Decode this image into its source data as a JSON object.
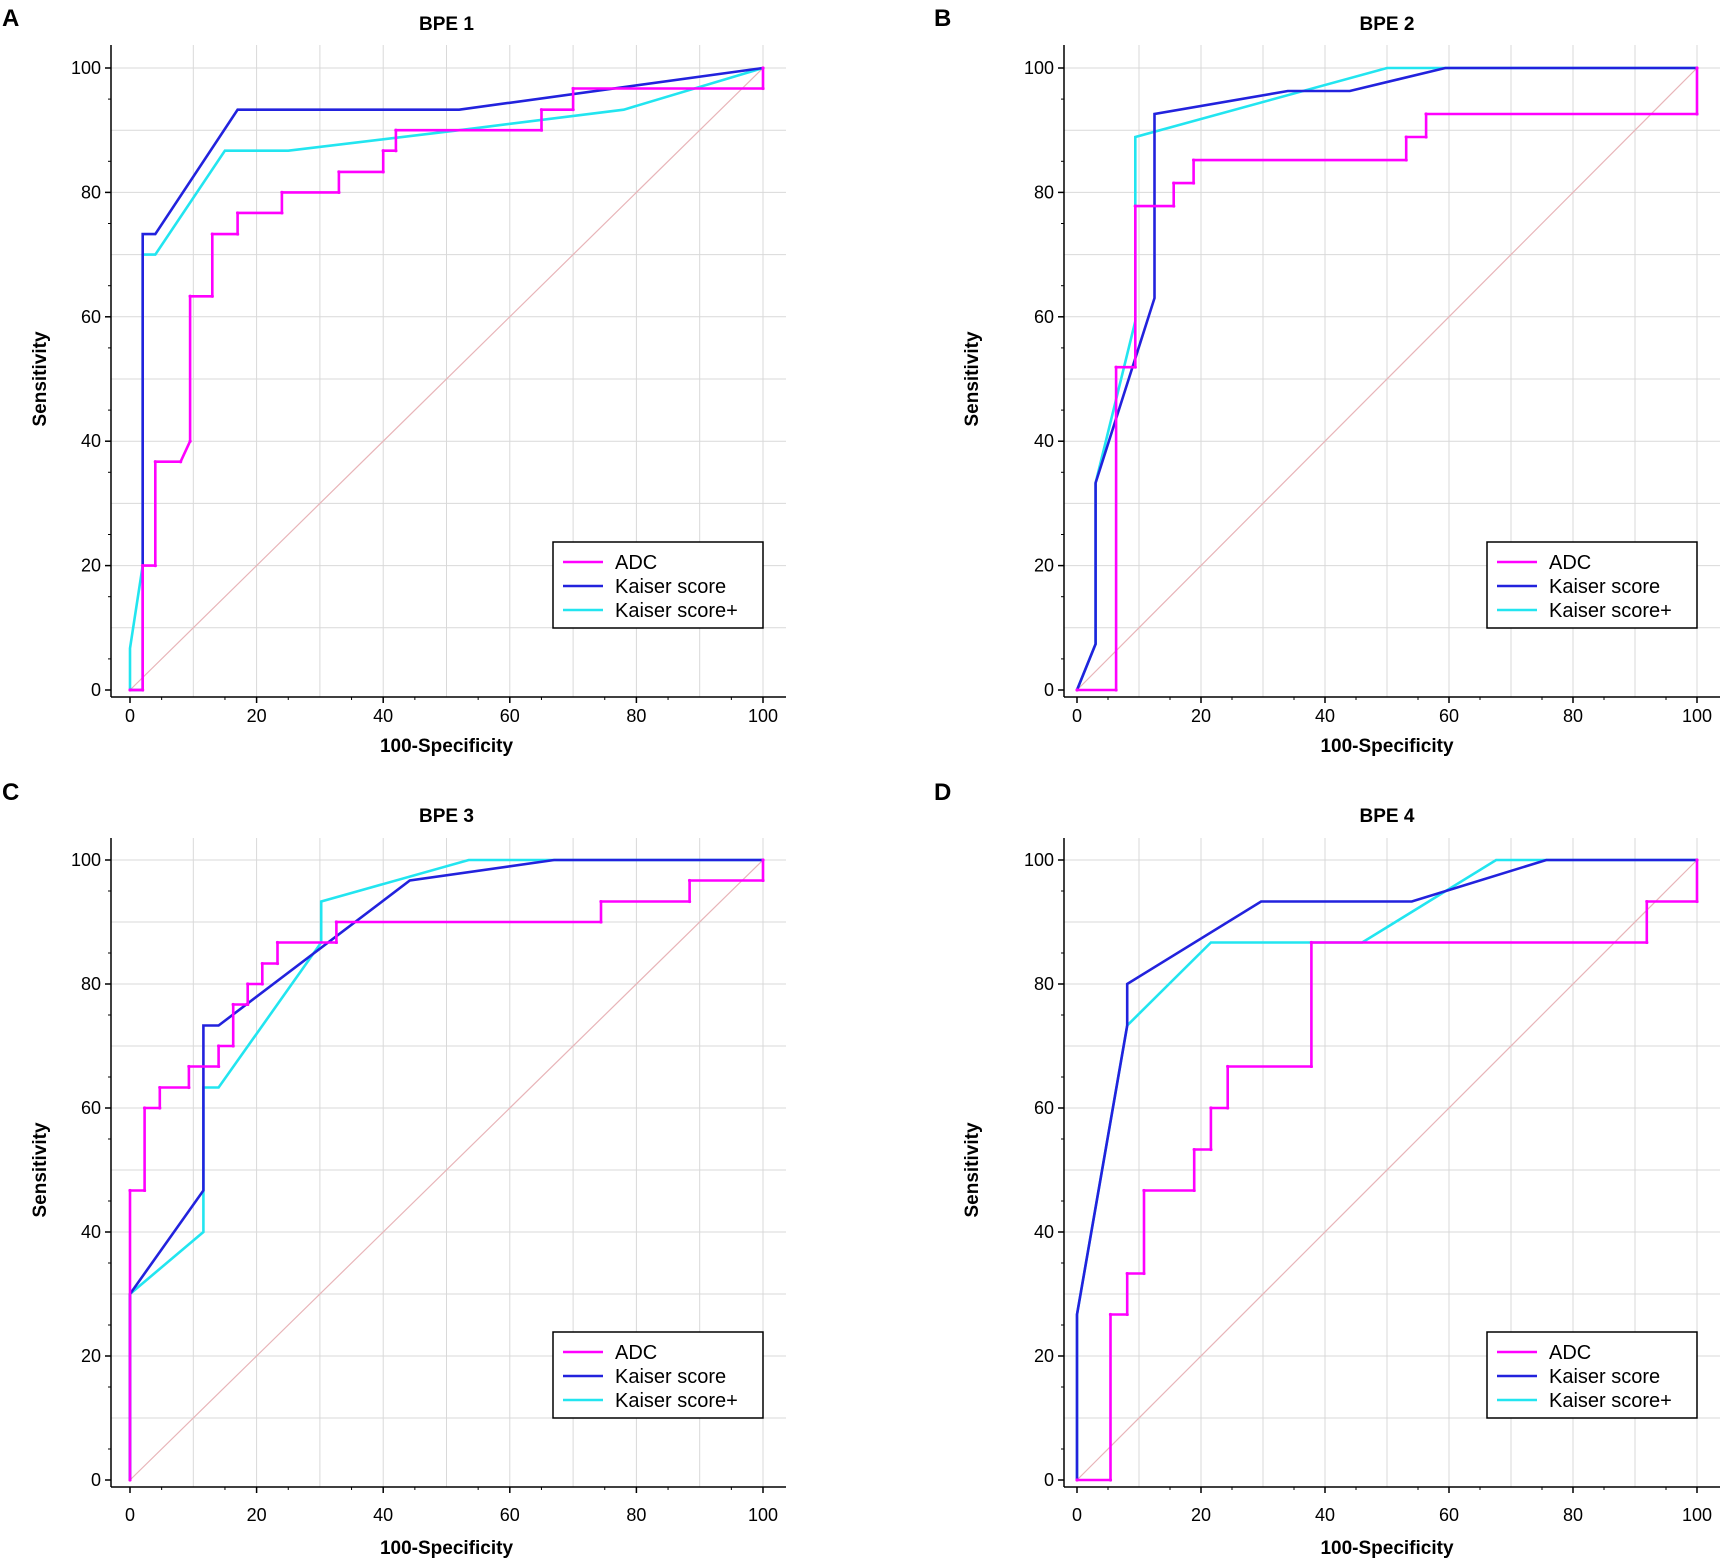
{
  "chart_data": [
    {
      "type": "line",
      "panel_letter": "A",
      "title": "BPE 1",
      "xlabel": "100-Specificity",
      "ylabel": "Sensitivity",
      "xlim": [
        0,
        100
      ],
      "ylim": [
        0,
        100
      ],
      "xticks": [
        "0",
        "20",
        "40",
        "60",
        "80",
        "100"
      ],
      "yticks": [
        "0",
        "20",
        "40",
        "60",
        "80",
        "100"
      ],
      "grid": true,
      "legend_position": "bottom-right",
      "diagonal": {
        "color": "#e8b4b8",
        "points": [
          [
            0,
            0
          ],
          [
            100,
            100
          ]
        ]
      },
      "series": [
        {
          "name": "ADC",
          "color": "#ff00ff",
          "step": true,
          "points": [
            [
              0,
              0
            ],
            [
              2,
              0
            ],
            [
              2,
              20
            ],
            [
              4,
              20
            ],
            [
              4,
              36.7
            ],
            [
              8,
              36.7
            ],
            [
              9.5,
              40
            ],
            [
              9.5,
              63.3
            ],
            [
              13,
              63.3
            ],
            [
              13,
              73.3
            ],
            [
              17,
              73.3
            ],
            [
              17,
              76.7
            ],
            [
              24,
              76.7
            ],
            [
              24,
              80
            ],
            [
              33,
              80
            ],
            [
              33,
              83.3
            ],
            [
              40,
              83.3
            ],
            [
              40,
              86.7
            ],
            [
              42,
              86.7
            ],
            [
              42,
              90
            ],
            [
              65,
              90
            ],
            [
              65,
              93.3
            ],
            [
              70,
              93.3
            ],
            [
              70,
              96.7
            ],
            [
              100,
              96.7
            ],
            [
              100,
              100
            ]
          ]
        },
        {
          "name": "Kaiser score",
          "color": "#2222dd",
          "points": [
            [
              0,
              0
            ],
            [
              2,
              0
            ],
            [
              2,
              73.3
            ],
            [
              4,
              73.3
            ],
            [
              17,
              93.3
            ],
            [
              52,
              93.3
            ],
            [
              100,
              100
            ]
          ]
        },
        {
          "name": "Kaiser score+",
          "color": "#22e5f0",
          "points": [
            [
              0,
              0
            ],
            [
              0,
              6.7
            ],
            [
              2,
              20
            ],
            [
              2,
              70
            ],
            [
              4,
              70
            ],
            [
              15,
              86.7
            ],
            [
              25,
              86.7
            ],
            [
              52,
              90
            ],
            [
              78,
              93.3
            ],
            [
              100,
              100
            ]
          ]
        }
      ]
    },
    {
      "type": "line",
      "panel_letter": "B",
      "title": "BPE 2",
      "xlabel": "100-Specificity",
      "ylabel": "Sensitivity",
      "xlim": [
        0,
        100
      ],
      "ylim": [
        0,
        100
      ],
      "xticks": [
        "0",
        "20",
        "40",
        "60",
        "80",
        "100"
      ],
      "yticks": [
        "0",
        "20",
        "40",
        "60",
        "80",
        "100"
      ],
      "grid": true,
      "legend_position": "bottom-right",
      "diagonal": {
        "color": "#e8b4b8",
        "points": [
          [
            0,
            0
          ],
          [
            100,
            100
          ]
        ]
      },
      "series": [
        {
          "name": "ADC",
          "color": "#ff00ff",
          "step": true,
          "points": [
            [
              0,
              0
            ],
            [
              6.3,
              0
            ],
            [
              6.3,
              51.9
            ],
            [
              9.4,
              51.9
            ],
            [
              9.4,
              77.8
            ],
            [
              15.6,
              77.8
            ],
            [
              15.6,
              81.5
            ],
            [
              18.8,
              81.5
            ],
            [
              18.8,
              85.2
            ],
            [
              53.1,
              85.2
            ],
            [
              53.1,
              88.9
            ],
            [
              56.3,
              88.9
            ],
            [
              56.3,
              92.6
            ],
            [
              100,
              92.6
            ],
            [
              100,
              100
            ]
          ]
        },
        {
          "name": "Kaiser score",
          "color": "#2222dd",
          "points": [
            [
              0,
              0
            ],
            [
              3,
              7.4
            ],
            [
              3,
              33.3
            ],
            [
              12.5,
              63
            ],
            [
              12.5,
              92.6
            ],
            [
              34,
              96.3
            ],
            [
              44,
              96.3
            ],
            [
              59.4,
              100
            ],
            [
              100,
              100
            ]
          ]
        },
        {
          "name": "Kaiser score+",
          "color": "#22e5f0",
          "points": [
            [
              0,
              0
            ],
            [
              3,
              7.4
            ],
            [
              3,
              33.3
            ],
            [
              9.4,
              59.3
            ],
            [
              9.4,
              88.9
            ],
            [
              50,
              100
            ],
            [
              100,
              100
            ]
          ]
        }
      ]
    },
    {
      "type": "line",
      "panel_letter": "C",
      "title": "BPE 3",
      "xlabel": "100-Specificity",
      "ylabel": "Sensitivity",
      "xlim": [
        0,
        100
      ],
      "ylim": [
        0,
        100
      ],
      "xticks": [
        "0",
        "20",
        "40",
        "60",
        "80",
        "100"
      ],
      "yticks": [
        "0",
        "20",
        "40",
        "60",
        "80",
        "100"
      ],
      "grid": true,
      "legend_position": "bottom-right",
      "diagonal": {
        "color": "#e8b4b8",
        "points": [
          [
            0,
            0
          ],
          [
            100,
            100
          ]
        ]
      },
      "series": [
        {
          "name": "ADC",
          "color": "#ff00ff",
          "step": true,
          "points": [
            [
              0,
              0
            ],
            [
              0,
              46.7
            ],
            [
              2.3,
              46.7
            ],
            [
              2.3,
              60
            ],
            [
              4.7,
              60
            ],
            [
              4.7,
              63.3
            ],
            [
              9.3,
              63.3
            ],
            [
              9.3,
              66.7
            ],
            [
              14,
              66.7
            ],
            [
              14,
              70
            ],
            [
              16.3,
              70
            ],
            [
              16.3,
              76.7
            ],
            [
              18.6,
              76.7
            ],
            [
              18.6,
              80
            ],
            [
              20.9,
              80
            ],
            [
              20.9,
              83.3
            ],
            [
              23.3,
              83.3
            ],
            [
              23.3,
              86.7
            ],
            [
              32.6,
              86.7
            ],
            [
              32.6,
              90
            ],
            [
              74.4,
              90
            ],
            [
              74.4,
              93.3
            ],
            [
              88.4,
              93.3
            ],
            [
              88.4,
              96.7
            ],
            [
              100,
              96.7
            ],
            [
              100,
              100
            ]
          ]
        },
        {
          "name": "Kaiser score",
          "color": "#2222dd",
          "points": [
            [
              0,
              0
            ],
            [
              0,
              30
            ],
            [
              11.6,
              46.7
            ],
            [
              11.6,
              73.3
            ],
            [
              14,
              73.3
            ],
            [
              44.2,
              96.7
            ],
            [
              67,
              100
            ],
            [
              100,
              100
            ]
          ]
        },
        {
          "name": "Kaiser score+",
          "color": "#22e5f0",
          "points": [
            [
              0,
              0
            ],
            [
              0,
              30
            ],
            [
              11.6,
              40
            ],
            [
              11.6,
              63.3
            ],
            [
              14,
              63.3
            ],
            [
              30.2,
              86.7
            ],
            [
              30.2,
              93.3
            ],
            [
              53.5,
              100
            ],
            [
              100,
              100
            ]
          ]
        }
      ]
    },
    {
      "type": "line",
      "panel_letter": "D",
      "title": "BPE 4",
      "xlabel": "100-Specificity",
      "ylabel": "Sensitivity",
      "xlim": [
        0,
        100
      ],
      "ylim": [
        0,
        100
      ],
      "xticks": [
        "0",
        "20",
        "40",
        "60",
        "80",
        "100"
      ],
      "yticks": [
        "0",
        "20",
        "40",
        "60",
        "80",
        "100"
      ],
      "grid": true,
      "legend_position": "bottom-right",
      "diagonal": {
        "color": "#e8b4b8",
        "points": [
          [
            0,
            0
          ],
          [
            100,
            100
          ]
        ]
      },
      "series": [
        {
          "name": "ADC",
          "color": "#ff00ff",
          "step": true,
          "points": [
            [
              0,
              0
            ],
            [
              5.4,
              0
            ],
            [
              5.4,
              26.7
            ],
            [
              8.1,
              26.7
            ],
            [
              8.1,
              33.3
            ],
            [
              10.8,
              33.3
            ],
            [
              10.8,
              46.7
            ],
            [
              18.9,
              46.7
            ],
            [
              18.9,
              53.3
            ],
            [
              21.6,
              53.3
            ],
            [
              21.6,
              60
            ],
            [
              24.3,
              60
            ],
            [
              24.3,
              66.7
            ],
            [
              37.8,
              66.7
            ],
            [
              37.8,
              86.7
            ],
            [
              91.9,
              86.7
            ],
            [
              91.9,
              93.3
            ],
            [
              100,
              93.3
            ],
            [
              100,
              100
            ]
          ]
        },
        {
          "name": "Kaiser score",
          "color": "#2222dd",
          "points": [
            [
              0,
              0
            ],
            [
              0,
              26.7
            ],
            [
              8.1,
              73.3
            ],
            [
              8.1,
              80
            ],
            [
              29.7,
              93.3
            ],
            [
              54,
              93.3
            ],
            [
              75.7,
              100
            ],
            [
              100,
              100
            ]
          ]
        },
        {
          "name": "Kaiser score+",
          "color": "#22e5f0",
          "points": [
            [
              0,
              0
            ],
            [
              0,
              26.7
            ],
            [
              8.1,
              73.3
            ],
            [
              21.6,
              86.7
            ],
            [
              46,
              86.7
            ],
            [
              67.6,
              100
            ],
            [
              100,
              100
            ]
          ]
        }
      ]
    }
  ]
}
